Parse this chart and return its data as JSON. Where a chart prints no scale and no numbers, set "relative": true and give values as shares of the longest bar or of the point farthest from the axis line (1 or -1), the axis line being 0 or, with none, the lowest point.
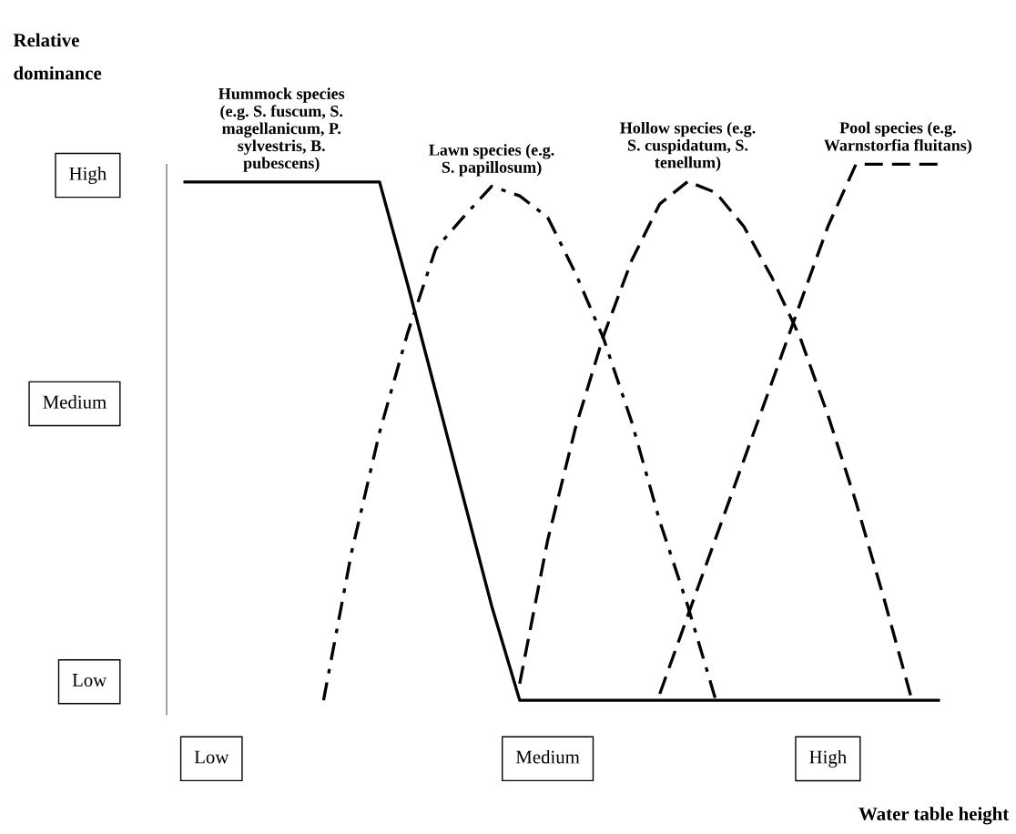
{
  "chart_data": {
    "type": "line",
    "xlabel": "Water table height",
    "relative": true,
    "categories": [
      null,
      "Low",
      null,
      null,
      null,
      null,
      null,
      null,
      null,
      null,
      null,
      null,
      null,
      "Medium",
      null,
      null,
      null,
      null,
      null,
      null,
      null,
      null,
      null,
      "High",
      null,
      null,
      null,
      null
    ],
    "annotations": [
      "Relative\ndominance",
      "High",
      "Medium",
      "Low"
    ],
    "legend": false,
    "marker": "none",
    "series": [
      {
        "name": "Hummock species\n(e.g. S. fuscum, S.\nmagellanicum, P.\nsylvestris, B.\npubescens)",
        "color": "#000000",
        "line_style": "solid",
        "values": [
          0.967,
          0.967,
          0.967,
          0.967,
          0.967,
          0.967,
          0.967,
          0.967,
          0.776,
          0.576,
          0.376,
          0.176,
          0,
          0,
          0,
          0,
          0,
          0,
          0,
          0,
          0,
          0,
          0,
          0,
          0,
          0,
          0,
          0
        ]
      },
      {
        "name": "Lawn species (e.g.\nS. papillosum)",
        "color": "#000000",
        "line_style": "dashdot",
        "values": [
          null,
          null,
          null,
          null,
          null,
          0,
          0.276,
          0.5,
          0.685,
          0.842,
          0.902,
          0.959,
          0.941,
          0.901,
          0.796,
          0.674,
          0.519,
          0.334,
          0.176,
          0,
          null,
          null,
          null,
          null,
          null,
          null,
          null,
          null
        ]
      },
      {
        "name": "Hollow species (e.g.\nS. cuspidatum, S.\ntenellum)",
        "color": "#000000",
        "line_style": "dashed",
        "values": [
          null,
          null,
          null,
          null,
          null,
          null,
          null,
          null,
          null,
          null,
          null,
          null,
          0.031,
          0.299,
          0.51,
          0.681,
          0.821,
          0.926,
          0.968,
          0.947,
          0.884,
          0.789,
          0.678,
          0.532,
          0.37,
          0.19,
          0,
          null
        ]
      },
      {
        "name": "Pool species (e.g.\nWarnstorfia fluitans)",
        "color": "#000000",
        "line_style": "dashed",
        "values": [
          null,
          null,
          null,
          null,
          null,
          null,
          null,
          null,
          null,
          null,
          null,
          null,
          null,
          null,
          null,
          null,
          null,
          0.012,
          0.158,
          0.303,
          0.448,
          0.593,
          0.739,
          0.884,
          1,
          1,
          1,
          1
        ]
      }
    ]
  }
}
